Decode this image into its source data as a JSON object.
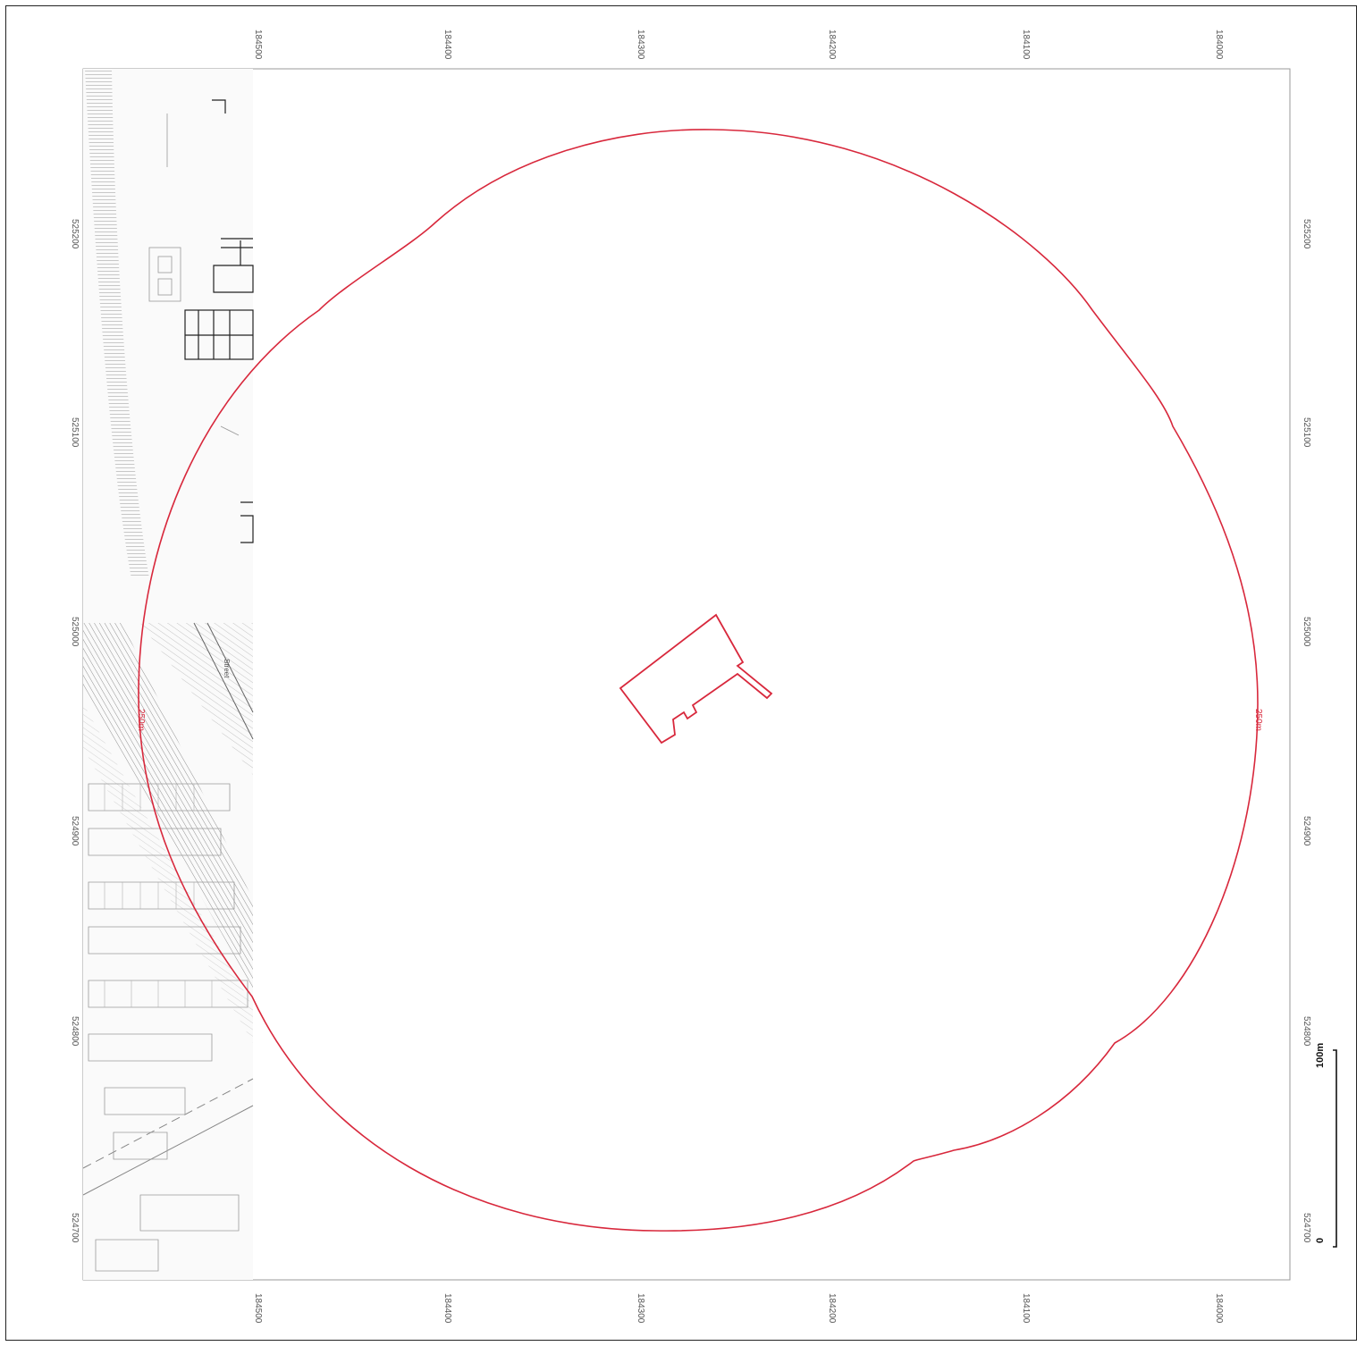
{
  "map": {
    "grid_easting_labels": [
      "524700",
      "524800",
      "524900",
      "525000",
      "525100",
      "525200"
    ],
    "grid_northing_labels": [
      "184500",
      "184400",
      "184300",
      "184200",
      "184100",
      "184000"
    ],
    "buffer_label": "250m",
    "buffer_color": "#d8283c",
    "site_color": "#d8283c",
    "street_label": "Street",
    "scale_bar": {
      "start_label": "0",
      "end_label": "100m"
    }
  }
}
